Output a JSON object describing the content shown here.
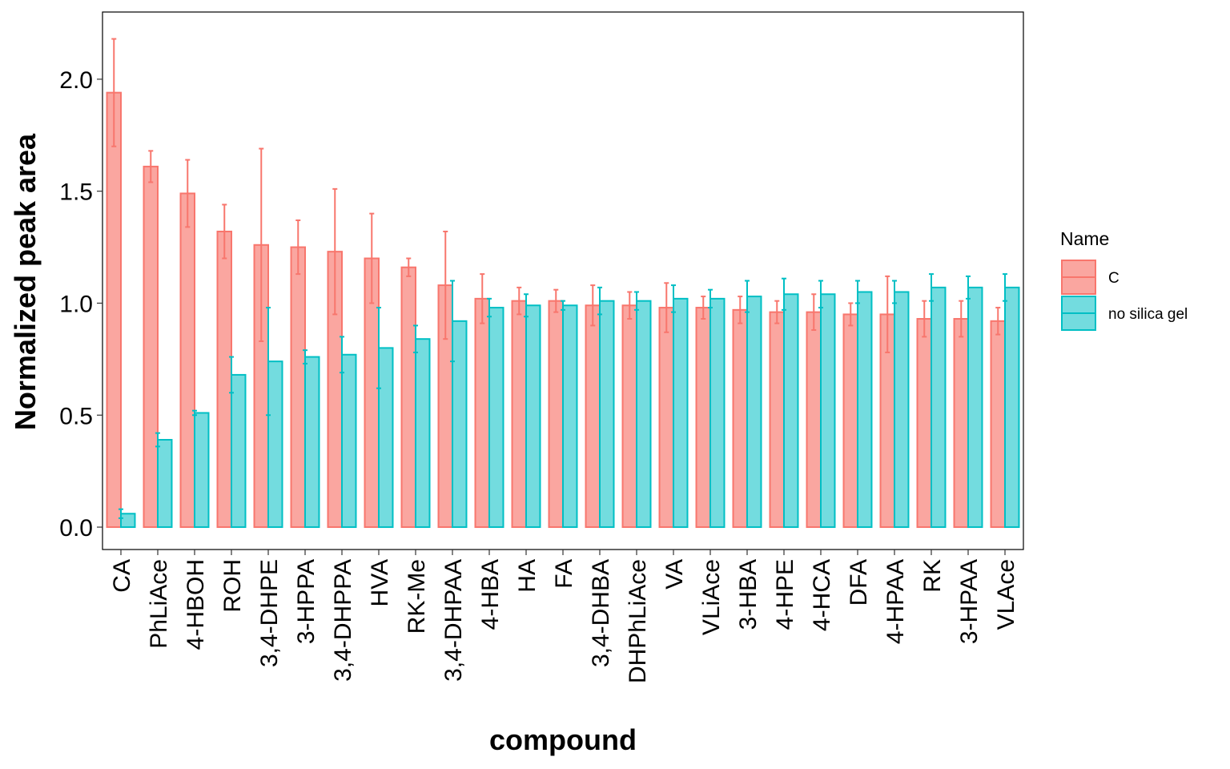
{
  "chart_data": {
    "type": "bar",
    "xlabel": "compound",
    "ylabel": "Normalized peak area",
    "ylim": [
      -0.1,
      2.3
    ],
    "yticks": [
      "0.0",
      "0.5",
      "1.0",
      "1.5",
      "2.0"
    ],
    "grid": false,
    "legend": {
      "title": "Name",
      "position": "right"
    },
    "categories": [
      "CA",
      "PhLiAce",
      "4-HBOH",
      "ROH",
      "3,4-DHPE",
      "3-HPPA",
      "3,4-DHPPA",
      "HVA",
      "RK-Me",
      "3,4-DHPAA",
      "4-HBA",
      "HA",
      "FA",
      "3,4-DHBA",
      "DHPhLiAce",
      "VA",
      "VLiAce",
      "3-HBA",
      "4-HPE",
      "4-HCA",
      "DFA",
      "4-HPAA",
      "RK",
      "3-HPAA",
      "VLAce"
    ],
    "series": [
      {
        "name": "C",
        "color": "#F8766D",
        "values": [
          1.94,
          1.61,
          1.49,
          1.32,
          1.26,
          1.25,
          1.23,
          1.2,
          1.16,
          1.08,
          1.02,
          1.01,
          1.01,
          0.99,
          0.99,
          0.98,
          0.98,
          0.97,
          0.96,
          0.96,
          0.95,
          0.95,
          0.93,
          0.93,
          0.92
        ],
        "errors": [
          0.24,
          0.07,
          0.15,
          0.12,
          0.43,
          0.12,
          0.28,
          0.2,
          0.04,
          0.24,
          0.11,
          0.06,
          0.05,
          0.09,
          0.06,
          0.11,
          0.05,
          0.06,
          0.05,
          0.08,
          0.05,
          0.17,
          0.08,
          0.08,
          0.06
        ]
      },
      {
        "name": "no silica gel",
        "color": "#00BFC4",
        "values": [
          0.06,
          0.39,
          0.51,
          0.68,
          0.74,
          0.76,
          0.77,
          0.8,
          0.84,
          0.92,
          0.98,
          0.99,
          0.99,
          1.01,
          1.01,
          1.02,
          1.02,
          1.03,
          1.04,
          1.04,
          1.05,
          1.05,
          1.07,
          1.07,
          1.07
        ],
        "errors": [
          0.02,
          0.03,
          0.01,
          0.08,
          0.24,
          0.03,
          0.08,
          0.18,
          0.06,
          0.18,
          0.04,
          0.05,
          0.02,
          0.06,
          0.04,
          0.06,
          0.04,
          0.07,
          0.07,
          0.06,
          0.05,
          0.05,
          0.06,
          0.05,
          0.06
        ]
      }
    ]
  }
}
